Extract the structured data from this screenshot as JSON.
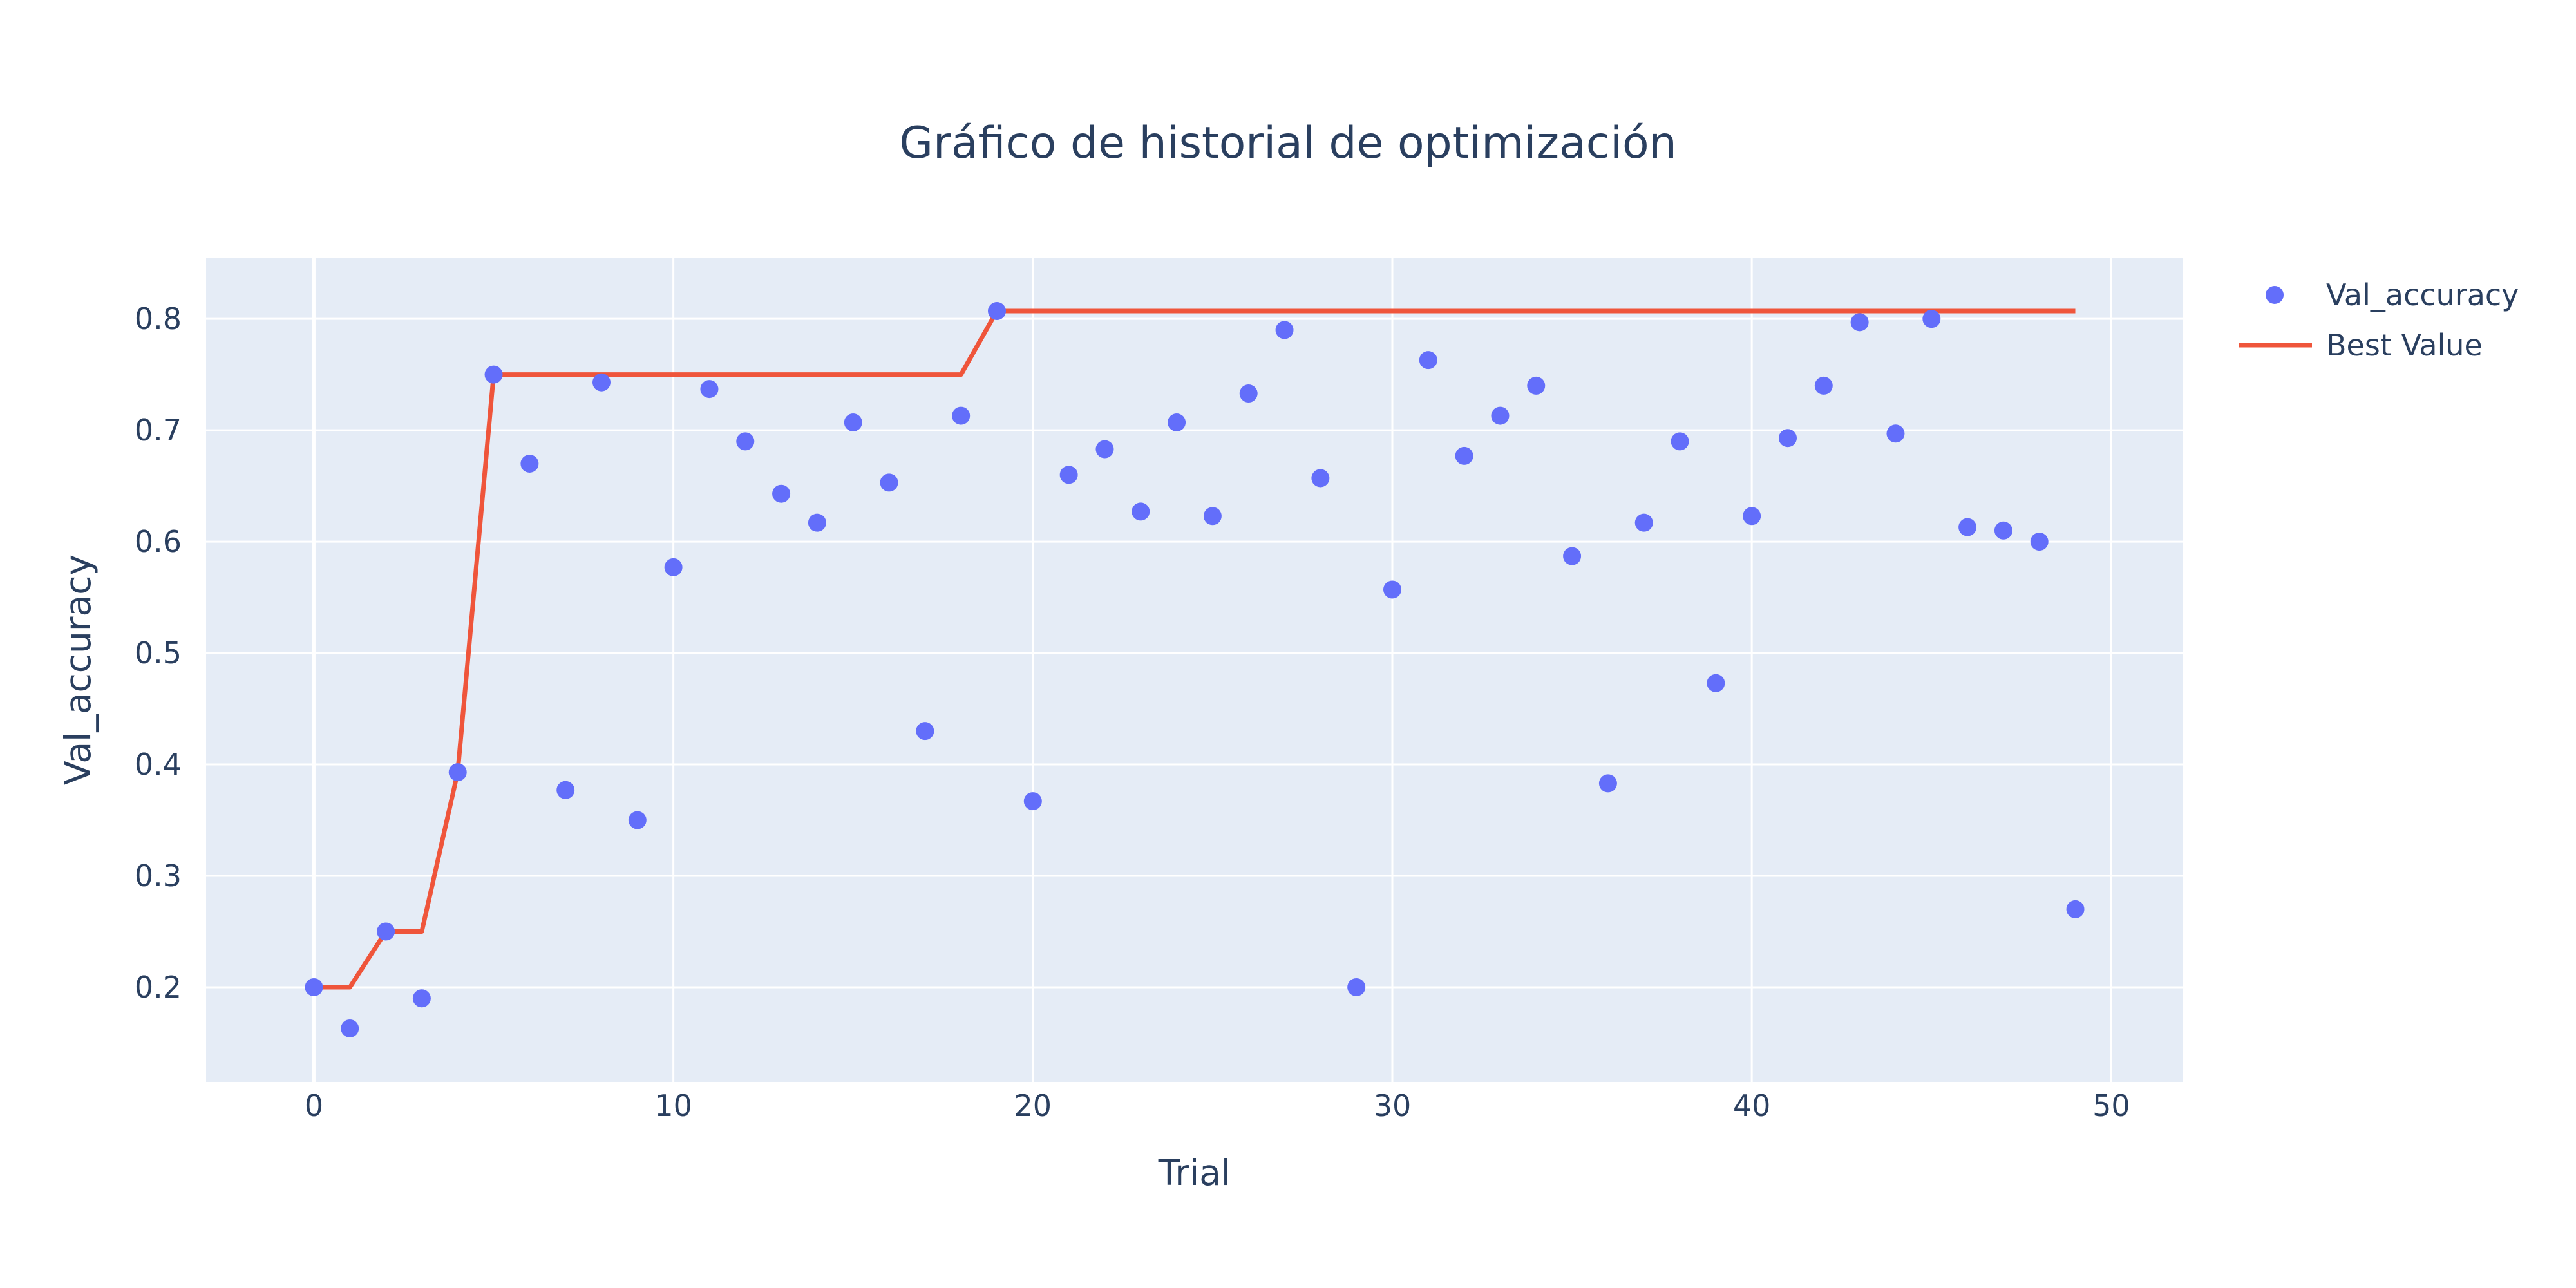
{
  "chart_data": {
    "type": "scatter",
    "title": "Gráfico de historial de optimización",
    "xlabel": "Trial",
    "ylabel": "Val_accuracy",
    "xlim": [
      -3,
      52
    ],
    "ylim": [
      0.115,
      0.855
    ],
    "x_ticks": [
      0,
      10,
      20,
      30,
      40,
      50
    ],
    "y_ticks": [
      0.2,
      0.3,
      0.4,
      0.5,
      0.6,
      0.7,
      0.8
    ],
    "grid": true,
    "legend_position": "top-right",
    "colors": {
      "plot_background": "#e5ecf6",
      "grid": "#ffffff",
      "points": "#636efa",
      "best_line": "#ef553b",
      "text": "#2a3f5f"
    },
    "series": [
      {
        "name": "Val_accuracy",
        "mode": "markers",
        "x": [
          0,
          1,
          2,
          3,
          4,
          5,
          6,
          7,
          8,
          9,
          10,
          11,
          12,
          13,
          14,
          15,
          16,
          17,
          18,
          19,
          20,
          21,
          22,
          23,
          24,
          25,
          26,
          27,
          28,
          29,
          30,
          31,
          32,
          33,
          34,
          35,
          36,
          37,
          38,
          39,
          40,
          41,
          42,
          43,
          44,
          45,
          46,
          47,
          48,
          49
        ],
        "y": [
          0.2,
          0.163,
          0.25,
          0.19,
          0.393,
          0.75,
          0.67,
          0.377,
          0.743,
          0.35,
          0.577,
          0.737,
          0.69,
          0.643,
          0.617,
          0.707,
          0.653,
          0.43,
          0.713,
          0.807,
          0.367,
          0.66,
          0.683,
          0.627,
          0.707,
          0.623,
          0.733,
          0.79,
          0.657,
          0.2,
          0.557,
          0.763,
          0.677,
          0.713,
          0.74,
          0.587,
          0.383,
          0.617,
          0.69,
          0.473,
          0.623,
          0.693,
          0.74,
          0.797,
          0.697,
          0.8,
          0.613,
          0.61,
          0.6,
          0.27
        ]
      },
      {
        "name": "Best Value",
        "mode": "lines",
        "x": [
          0,
          1,
          2,
          3,
          4,
          5,
          6,
          7,
          8,
          9,
          10,
          11,
          12,
          13,
          14,
          15,
          16,
          17,
          18,
          19,
          20,
          21,
          22,
          23,
          24,
          25,
          26,
          27,
          28,
          29,
          30,
          31,
          32,
          33,
          34,
          35,
          36,
          37,
          38,
          39,
          40,
          41,
          42,
          43,
          44,
          45,
          46,
          47,
          48,
          49
        ],
        "y": [
          0.2,
          0.2,
          0.25,
          0.25,
          0.393,
          0.75,
          0.75,
          0.75,
          0.75,
          0.75,
          0.75,
          0.75,
          0.75,
          0.75,
          0.75,
          0.75,
          0.75,
          0.75,
          0.75,
          0.807,
          0.807,
          0.807,
          0.807,
          0.807,
          0.807,
          0.807,
          0.807,
          0.807,
          0.807,
          0.807,
          0.807,
          0.807,
          0.807,
          0.807,
          0.807,
          0.807,
          0.807,
          0.807,
          0.807,
          0.807,
          0.807,
          0.807,
          0.807,
          0.807,
          0.807,
          0.807,
          0.807,
          0.807,
          0.807,
          0.807
        ]
      }
    ]
  }
}
